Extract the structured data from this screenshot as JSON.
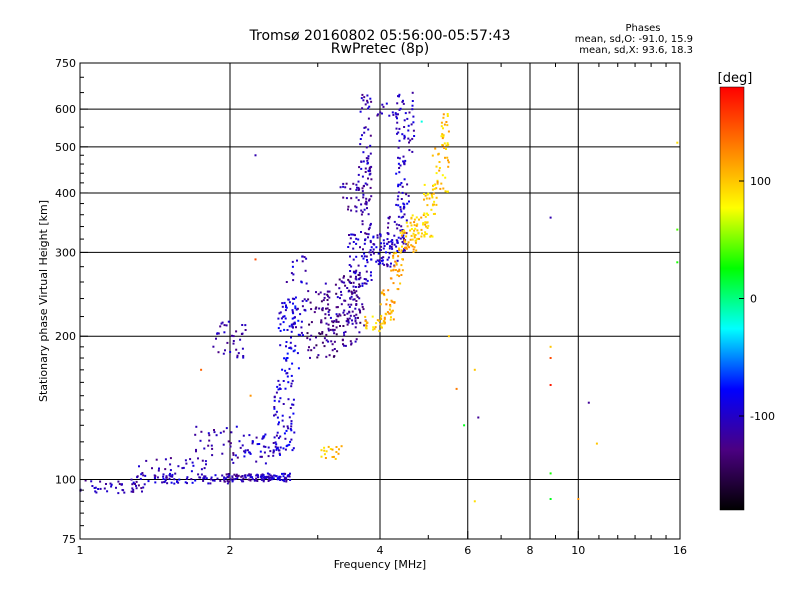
{
  "chart_data": {
    "type": "scatter",
    "title": "Tromsø 20160802 05:56:00-05:57:43",
    "subtitle": "RwPretec (8p)",
    "stats": {
      "heading": "Phases",
      "line1": "mean, sd,O: -91.0, 15.9",
      "line2": "mean, sd,X:  93.6, 18.3"
    },
    "xlabel": "Frequency [MHz]",
    "ylabel": "Stationary phase Virtual Height [km]",
    "xscale": "log",
    "yscale": "log",
    "xlim": [
      1,
      16
    ],
    "ylim": [
      75,
      750
    ],
    "xticks": [
      1,
      2,
      4,
      6,
      8,
      10,
      16
    ],
    "yticks": [
      75,
      100,
      200,
      300,
      400,
      500,
      600,
      750
    ],
    "grid": true,
    "colorbar": {
      "label": "[deg]",
      "range": [
        -180,
        180
      ],
      "ticks": [
        100,
        0,
        -100
      ],
      "colors": [
        "#000000",
        "#4b0082",
        "#0000ff",
        "#00ffff",
        "#00ff00",
        "#ffff00",
        "#ff7f00",
        "#ff0000"
      ]
    },
    "clusters": [
      {
        "x": [
          1.0,
          1.35
        ],
        "y": [
          93,
          100
        ],
        "phase": -110,
        "n": 45
      },
      {
        "x": [
          1.35,
          2.0
        ],
        "y": [
          98,
          103
        ],
        "phase": -100,
        "n": 60
      },
      {
        "x": [
          1.3,
          1.8
        ],
        "y": [
          100,
          112
        ],
        "phase": -110,
        "n": 40
      },
      {
        "x": [
          1.7,
          2.1
        ],
        "y": [
          108,
          130
        ],
        "phase": -110,
        "n": 35
      },
      {
        "x": [
          1.85,
          2.15
        ],
        "y": [
          180,
          215
        ],
        "phase": -115,
        "n": 35
      },
      {
        "x": [
          1.95,
          2.3
        ],
        "y": [
          99,
          103
        ],
        "phase": -110,
        "n": 50
      },
      {
        "x": [
          2.3,
          2.65
        ],
        "y": [
          99,
          103
        ],
        "phase": -100,
        "n": 60
      },
      {
        "x": [
          2.1,
          2.55
        ],
        "y": [
          108,
          125
        ],
        "phase": -100,
        "n": 50
      },
      {
        "x": [
          2.45,
          2.7
        ],
        "y": [
          115,
          160
        ],
        "phase": -95,
        "n": 60
      },
      {
        "x": [
          2.5,
          2.75
        ],
        "y": [
          160,
          240
        ],
        "phase": -90,
        "n": 70
      },
      {
        "x": [
          2.65,
          2.85
        ],
        "y": [
          200,
          300
        ],
        "phase": -100,
        "n": 40
      },
      {
        "x": [
          2.85,
          3.3
        ],
        "y": [
          180,
          250
        ],
        "phase": -130,
        "n": 70
      },
      {
        "x": [
          3.1,
          3.65
        ],
        "y": [
          190,
          260
        ],
        "phase": -115,
        "n": 80
      },
      {
        "x": [
          3.3,
          3.75
        ],
        "y": [
          210,
          270
        ],
        "phase": -125,
        "n": 60
      },
      {
        "x": [
          3.45,
          3.85
        ],
        "y": [
          255,
          330
        ],
        "phase": -105,
        "n": 60
      },
      {
        "x": [
          3.6,
          3.85
        ],
        "y": [
          320,
          470
        ],
        "phase": -110,
        "n": 60
      },
      {
        "x": [
          3.65,
          3.85
        ],
        "y": [
          470,
          650
        ],
        "phase": -110,
        "n": 30
      },
      {
        "x": [
          3.3,
          3.6
        ],
        "y": [
          360,
          420
        ],
        "phase": -115,
        "n": 20
      },
      {
        "x": [
          3.8,
          4.35
        ],
        "y": [
          280,
          330
        ],
        "phase": -100,
        "n": 60
      },
      {
        "x": [
          4.15,
          4.55
        ],
        "y": [
          300,
          360
        ],
        "phase": -105,
        "n": 45
      },
      {
        "x": [
          4.3,
          4.6
        ],
        "y": [
          360,
          480
        ],
        "phase": -100,
        "n": 40
      },
      {
        "x": [
          4.3,
          4.7
        ],
        "y": [
          480,
          650
        ],
        "phase": -105,
        "n": 45
      },
      {
        "x": [
          3.9,
          4.4
        ],
        "y": [
          580,
          620
        ],
        "phase": -110,
        "n": 12
      },
      {
        "x": [
          3.7,
          4.1
        ],
        "y": [
          205,
          220
        ],
        "phase": 100,
        "n": 30
      },
      {
        "x": [
          4.0,
          4.3
        ],
        "y": [
          215,
          250
        ],
        "phase": 110,
        "n": 30
      },
      {
        "x": [
          4.2,
          4.45
        ],
        "y": [
          250,
          300
        ],
        "phase": 115,
        "n": 30
      },
      {
        "x": [
          4.35,
          4.75
        ],
        "y": [
          300,
          350
        ],
        "phase": 105,
        "n": 40
      },
      {
        "x": [
          4.6,
          5.1
        ],
        "y": [
          320,
          360
        ],
        "phase": 100,
        "n": 45
      },
      {
        "x": [
          4.9,
          5.2
        ],
        "y": [
          360,
          420
        ],
        "phase": 95,
        "n": 30
      },
      {
        "x": [
          5.1,
          5.5
        ],
        "y": [
          400,
          520
        ],
        "phase": 100,
        "n": 30
      },
      {
        "x": [
          5.3,
          5.5
        ],
        "y": [
          500,
          620
        ],
        "phase": 100,
        "n": 20
      },
      {
        "x": [
          3.05,
          3.35
        ],
        "y": [
          110,
          118
        ],
        "phase": 100,
        "n": 18
      }
    ],
    "points": [
      {
        "x": 2.25,
        "y": 480,
        "phase": -110
      },
      {
        "x": 2.25,
        "y": 290,
        "phase": 150
      },
      {
        "x": 2.6,
        "y": 260,
        "phase": -120
      },
      {
        "x": 1.75,
        "y": 170,
        "phase": 140
      },
      {
        "x": 2.2,
        "y": 150,
        "phase": 120
      },
      {
        "x": 5.5,
        "y": 200,
        "phase": 100
      },
      {
        "x": 5.7,
        "y": 155,
        "phase": 130
      },
      {
        "x": 6.2,
        "y": 170,
        "phase": 100
      },
      {
        "x": 6.3,
        "y": 135,
        "phase": -120
      },
      {
        "x": 5.9,
        "y": 130,
        "phase": 20
      },
      {
        "x": 6.2,
        "y": 90,
        "phase": 90
      },
      {
        "x": 8.8,
        "y": 355,
        "phase": -110
      },
      {
        "x": 8.8,
        "y": 190,
        "phase": 100
      },
      {
        "x": 8.8,
        "y": 180,
        "phase": 150
      },
      {
        "x": 8.8,
        "y": 158,
        "phase": 170
      },
      {
        "x": 8.8,
        "y": 103,
        "phase": 30
      },
      {
        "x": 8.8,
        "y": 91,
        "phase": 20
      },
      {
        "x": 10.0,
        "y": 91,
        "phase": 120
      },
      {
        "x": 10.5,
        "y": 145,
        "phase": -120
      },
      {
        "x": 10.9,
        "y": 119,
        "phase": 100
      },
      {
        "x": 15.8,
        "y": 510,
        "phase": 90
      },
      {
        "x": 15.8,
        "y": 335,
        "phase": 40
      },
      {
        "x": 15.8,
        "y": 286,
        "phase": 30
      },
      {
        "x": 4.85,
        "y": 565,
        "phase": -20
      }
    ]
  }
}
